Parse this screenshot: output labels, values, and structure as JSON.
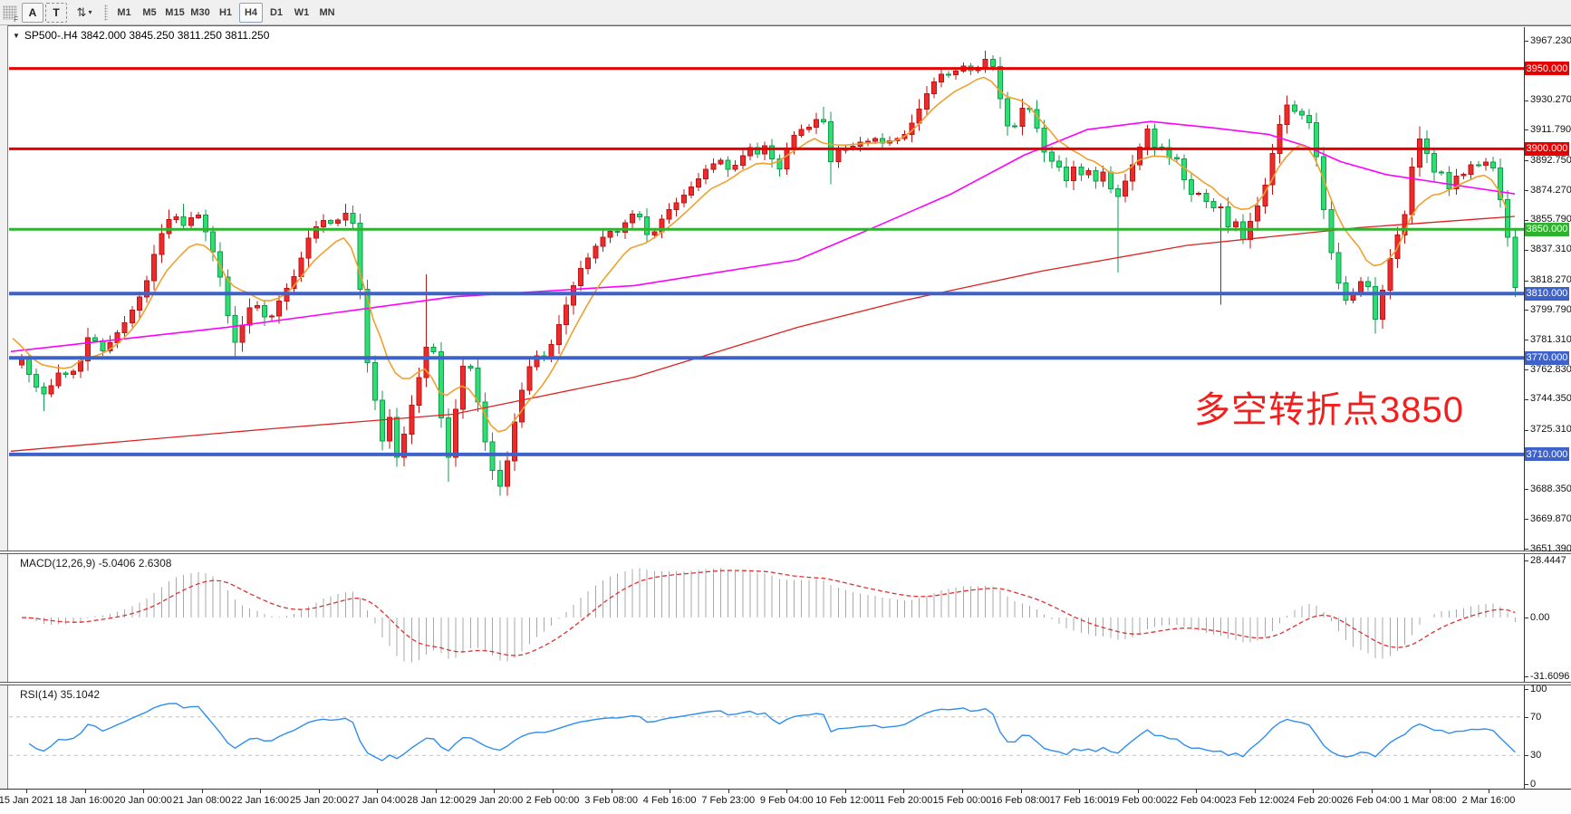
{
  "toolbar": {
    "handle_label": "F",
    "a_button": "A",
    "t_button": "T",
    "arrows_icon": "⇅",
    "caret": "▾",
    "timeframes": [
      "M1",
      "M5",
      "M15",
      "M30",
      "H1",
      "H4",
      "D1",
      "W1",
      "MN"
    ],
    "active_timeframe": "H4"
  },
  "chart": {
    "dropdown_icon": "▼",
    "title_line": "SP500-.H4  3842.000 3845.250 3811.250 3811.250",
    "symbol": "SP500-",
    "timeframe": "H4"
  },
  "annotation": {
    "text": "多空转折点3850",
    "color": "#f21f1f"
  },
  "macd": {
    "label": "MACD(12,26,9) -5.0406 2.6308",
    "scale": [
      "28.4447",
      "0.00",
      "-31.6096"
    ]
  },
  "rsi": {
    "label": "RSI(14) 35.1042",
    "scale": [
      "100",
      "70",
      "30",
      "0"
    ]
  },
  "time_axis": [
    "15 Jan 2021",
    "18 Jan 16:00",
    "20 Jan 00:00",
    "21 Jan 08:00",
    "22 Jan 16:00",
    "25 Jan 20:00",
    "27 Jan 04:00",
    "28 Jan 12:00",
    "29 Jan 20:00",
    "2 Feb 00:00",
    "3 Feb 08:00",
    "4 Feb 16:00",
    "7 Feb 23:00",
    "9 Feb 04:00",
    "10 Feb 12:00",
    "11 Feb 20:00",
    "15 Feb 00:00",
    "16 Feb 08:00",
    "17 Feb 16:00",
    "19 Feb 00:00",
    "22 Feb 04:00",
    "23 Feb 12:00",
    "24 Feb 20:00",
    "26 Feb 04:00",
    "1 Mar 08:00",
    "2 Mar 16:00"
  ],
  "chart_data": {
    "type": "candlestick",
    "symbol": "SP500-",
    "timeframe": "H4",
    "last_bar": {
      "open": 3842.0,
      "high": 3845.25,
      "low": 3811.25,
      "close": 3811.25
    },
    "y_ticks": [
      "3967.230",
      "3930.270",
      "3911.790",
      "3892.750",
      "3874.270",
      "3855.790",
      "3837.310",
      "3818.270",
      "3799.790",
      "3781.310",
      "3762.830",
      "3744.350",
      "3725.310",
      "3688.350",
      "3669.870",
      "3651.390"
    ],
    "y_range": [
      3651.39,
      3967.23
    ],
    "levels": [
      {
        "price": 3950.0,
        "label": "3950.000",
        "color": "#e60000",
        "width": 3
      },
      {
        "price": 3900.0,
        "label": "3900.000",
        "color": "#e60000",
        "width": 3
      },
      {
        "price": 3850.0,
        "label": "3850.000",
        "color": "#2eb32e",
        "width": 3
      },
      {
        "price": 3810.0,
        "label": "3810.000",
        "color": "#3e62c8",
        "width": 4
      },
      {
        "price": 3770.0,
        "label": "3770.000",
        "color": "#3e62c8",
        "width": 4
      },
      {
        "price": 3710.0,
        "label": "3710.000",
        "color": "#3e62c8",
        "width": 4
      }
    ],
    "colors": {
      "bull": "#ea2c2c",
      "bull_edge": "#c01414",
      "bear": "#2ede70",
      "bear_edge": "#0f9e4c",
      "ma_fast": "#f0a030",
      "ma_mid": "#ff00ff",
      "ma_slow": "#dd2222",
      "macd_hist": "#a8a8a8",
      "macd_signal": "#e03030",
      "rsi_line": "#2e8ef0"
    },
    "price_path": [
      [
        12,
        3772
      ],
      [
        22,
        3760
      ],
      [
        32,
        3750
      ],
      [
        40,
        3747
      ],
      [
        50,
        3756
      ],
      [
        58,
        3764
      ],
      [
        66,
        3757
      ],
      [
        74,
        3765
      ],
      [
        82,
        3770
      ],
      [
        88,
        3785
      ],
      [
        96,
        3780
      ],
      [
        104,
        3774
      ],
      [
        112,
        3780
      ],
      [
        120,
        3786
      ],
      [
        128,
        3792
      ],
      [
        136,
        3800
      ],
      [
        144,
        3808
      ],
      [
        152,
        3818
      ],
      [
        160,
        3834
      ],
      [
        168,
        3847
      ],
      [
        176,
        3856
      ],
      [
        184,
        3858
      ],
      [
        192,
        3852
      ],
      [
        200,
        3857
      ],
      [
        208,
        3860
      ],
      [
        216,
        3850
      ],
      [
        224,
        3838
      ],
      [
        232,
        3824
      ],
      [
        240,
        3800
      ],
      [
        248,
        3778
      ],
      [
        254,
        3785
      ],
      [
        262,
        3797
      ],
      [
        270,
        3806
      ],
      [
        278,
        3799
      ],
      [
        286,
        3792
      ],
      [
        294,
        3800
      ],
      [
        302,
        3810
      ],
      [
        310,
        3816
      ],
      [
        318,
        3824
      ],
      [
        326,
        3838
      ],
      [
        334,
        3849
      ],
      [
        342,
        3853
      ],
      [
        350,
        3857
      ],
      [
        358,
        3852
      ],
      [
        366,
        3858
      ],
      [
        374,
        3861
      ],
      [
        380,
        3853
      ],
      [
        388,
        3810
      ],
      [
        396,
        3765
      ],
      [
        404,
        3743
      ],
      [
        412,
        3718
      ],
      [
        420,
        3733
      ],
      [
        428,
        3708
      ],
      [
        436,
        3722
      ],
      [
        444,
        3740
      ],
      [
        452,
        3757
      ],
      [
        458,
        3768
      ],
      [
        464,
        3788
      ],
      [
        470,
        3770
      ],
      [
        476,
        3738
      ],
      [
        482,
        3700
      ],
      [
        488,
        3717
      ],
      [
        494,
        3742
      ],
      [
        500,
        3763
      ],
      [
        506,
        3772
      ],
      [
        512,
        3757
      ],
      [
        518,
        3741
      ],
      [
        524,
        3722
      ],
      [
        530,
        3706
      ],
      [
        537,
        3695
      ],
      [
        543,
        3689
      ],
      [
        549,
        3703
      ],
      [
        555,
        3722
      ],
      [
        561,
        3738
      ],
      [
        567,
        3752
      ],
      [
        573,
        3763
      ],
      [
        581,
        3772
      ],
      [
        589,
        3768
      ],
      [
        597,
        3776
      ],
      [
        605,
        3788
      ],
      [
        613,
        3800
      ],
      [
        621,
        3812
      ],
      [
        629,
        3824
      ],
      [
        637,
        3830
      ],
      [
        645,
        3838
      ],
      [
        653,
        3843
      ],
      [
        661,
        3850
      ],
      [
        669,
        3846
      ],
      [
        677,
        3852
      ],
      [
        685,
        3858
      ],
      [
        693,
        3862
      ],
      [
        700,
        3852
      ],
      [
        707,
        3843
      ],
      [
        714,
        3850
      ],
      [
        722,
        3858
      ],
      [
        730,
        3863
      ],
      [
        738,
        3867
      ],
      [
        746,
        3872
      ],
      [
        754,
        3877
      ],
      [
        762,
        3882
      ],
      [
        770,
        3888
      ],
      [
        778,
        3891
      ],
      [
        786,
        3893
      ],
      [
        794,
        3887
      ],
      [
        802,
        3890
      ],
      [
        810,
        3896
      ],
      [
        818,
        3901
      ],
      [
        826,
        3897
      ],
      [
        834,
        3902
      ],
      [
        842,
        3894
      ],
      [
        850,
        3887
      ],
      [
        858,
        3899
      ],
      [
        866,
        3908
      ],
      [
        874,
        3912
      ],
      [
        882,
        3913
      ],
      [
        890,
        3918
      ],
      [
        898,
        3921
      ],
      [
        906,
        3891
      ],
      [
        912,
        3897
      ],
      [
        920,
        3902
      ],
      [
        928,
        3898
      ],
      [
        936,
        3906
      ],
      [
        944,
        3902
      ],
      [
        952,
        3908
      ],
      [
        960,
        3905
      ],
      [
        968,
        3902
      ],
      [
        976,
        3908
      ],
      [
        984,
        3905
      ],
      [
        992,
        3912
      ],
      [
        1000,
        3919
      ],
      [
        1008,
        3929
      ],
      [
        1016,
        3938
      ],
      [
        1024,
        3944
      ],
      [
        1032,
        3948
      ],
      [
        1040,
        3945
      ],
      [
        1048,
        3950
      ],
      [
        1056,
        3952
      ],
      [
        1064,
        3947
      ],
      [
        1072,
        3952
      ],
      [
        1080,
        3957
      ],
      [
        1088,
        3949
      ],
      [
        1094,
        3931
      ],
      [
        1100,
        3917
      ],
      [
        1106,
        3909
      ],
      [
        1112,
        3916
      ],
      [
        1118,
        3925
      ],
      [
        1124,
        3928
      ],
      [
        1130,
        3919
      ],
      [
        1136,
        3911
      ],
      [
        1142,
        3899
      ],
      [
        1148,
        3889
      ],
      [
        1154,
        3896
      ],
      [
        1160,
        3887
      ],
      [
        1166,
        3879
      ],
      [
        1172,
        3886
      ],
      [
        1178,
        3891
      ],
      [
        1184,
        3883
      ],
      [
        1190,
        3888
      ],
      [
        1196,
        3881
      ],
      [
        1202,
        3879
      ],
      [
        1208,
        3886
      ],
      [
        1214,
        3879
      ],
      [
        1220,
        3866
      ],
      [
        1226,
        3873
      ],
      [
        1232,
        3880
      ],
      [
        1238,
        3887
      ],
      [
        1244,
        3896
      ],
      [
        1250,
        3903
      ],
      [
        1256,
        3913
      ],
      [
        1262,
        3904
      ],
      [
        1268,
        3897
      ],
      [
        1274,
        3902
      ],
      [
        1280,
        3894
      ],
      [
        1286,
        3898
      ],
      [
        1292,
        3889
      ],
      [
        1298,
        3879
      ],
      [
        1304,
        3871
      ],
      [
        1310,
        3876
      ],
      [
        1316,
        3869
      ],
      [
        1322,
        3867
      ],
      [
        1328,
        3861
      ],
      [
        1334,
        3871
      ],
      [
        1340,
        3859
      ],
      [
        1346,
        3851
      ],
      [
        1352,
        3857
      ],
      [
        1358,
        3849
      ],
      [
        1364,
        3841
      ],
      [
        1370,
        3855
      ],
      [
        1376,
        3862
      ],
      [
        1382,
        3869
      ],
      [
        1388,
        3881
      ],
      [
        1394,
        3896
      ],
      [
        1400,
        3911
      ],
      [
        1406,
        3921
      ],
      [
        1412,
        3929
      ],
      [
        1418,
        3924
      ],
      [
        1424,
        3919
      ],
      [
        1430,
        3923
      ],
      [
        1436,
        3915
      ],
      [
        1442,
        3899
      ],
      [
        1448,
        3878
      ],
      [
        1454,
        3849
      ],
      [
        1460,
        3834
      ],
      [
        1466,
        3819
      ],
      [
        1472,
        3809
      ],
      [
        1478,
        3804
      ],
      [
        1484,
        3810
      ],
      [
        1490,
        3816
      ],
      [
        1496,
        3821
      ],
      [
        1502,
        3811
      ],
      [
        1508,
        3794
      ],
      [
        1514,
        3807
      ],
      [
        1520,
        3821
      ],
      [
        1526,
        3836
      ],
      [
        1532,
        3846
      ],
      [
        1539,
        3853
      ],
      [
        1546,
        3881
      ],
      [
        1553,
        3901
      ],
      [
        1559,
        3909
      ],
      [
        1565,
        3897
      ],
      [
        1571,
        3889
      ],
      [
        1577,
        3879
      ],
      [
        1583,
        3888
      ],
      [
        1589,
        3875
      ],
      [
        1595,
        3880
      ],
      [
        1601,
        3888
      ],
      [
        1607,
        3883
      ],
      [
        1613,
        3890
      ],
      [
        1619,
        3892
      ],
      [
        1625,
        3887
      ],
      [
        1631,
        3893
      ],
      [
        1637,
        3889
      ],
      [
        1643,
        3884
      ],
      [
        1649,
        3854
      ],
      [
        1656,
        3842
      ],
      [
        1663,
        3811
      ]
    ],
    "wick_lows": [
      [
        38,
        3737
      ],
      [
        248,
        3770
      ],
      [
        428,
        3703
      ],
      [
        482,
        3693
      ],
      [
        543,
        3687
      ],
      [
        906,
        3878
      ],
      [
        1222,
        3823
      ],
      [
        1340,
        3803
      ],
      [
        1510,
        3785
      ]
    ],
    "wick_highs": [
      [
        190,
        3866
      ],
      [
        374,
        3866
      ],
      [
        464,
        3822
      ],
      [
        898,
        3926
      ],
      [
        1080,
        3961
      ],
      [
        1412,
        3932
      ],
      [
        1559,
        3914
      ]
    ],
    "ma_mid_path": [
      [
        12,
        3774
      ],
      [
        250,
        3789
      ],
      [
        500,
        3808
      ],
      [
        700,
        3815
      ],
      [
        880,
        3831
      ],
      [
        960,
        3850
      ],
      [
        1050,
        3872
      ],
      [
        1130,
        3896
      ],
      [
        1200,
        3912
      ],
      [
        1270,
        3917
      ],
      [
        1340,
        3913
      ],
      [
        1400,
        3909
      ],
      [
        1440,
        3902
      ],
      [
        1480,
        3892
      ],
      [
        1530,
        3884
      ],
      [
        1600,
        3878
      ],
      [
        1672,
        3872
      ]
    ],
    "ma_slow_path": [
      [
        12,
        3712
      ],
      [
        300,
        3726
      ],
      [
        500,
        3735
      ],
      [
        700,
        3758
      ],
      [
        880,
        3789
      ],
      [
        1000,
        3806
      ],
      [
        1150,
        3824
      ],
      [
        1310,
        3840
      ],
      [
        1500,
        3851
      ],
      [
        1672,
        3858
      ]
    ],
    "indicators": {
      "macd": {
        "params": [
          12,
          26,
          9
        ],
        "value": -5.0406,
        "signal_value": 2.6308,
        "axis": [
          28.4447,
          0.0,
          -31.6096
        ]
      },
      "rsi": {
        "period": 14,
        "value": 35.1042,
        "levels": [
          70,
          30
        ],
        "axis": [
          100,
          70,
          30,
          0
        ]
      }
    },
    "x_labels": [
      "15 Jan 2021",
      "18 Jan 16:00",
      "20 Jan 00:00",
      "21 Jan 08:00",
      "22 Jan 16:00",
      "25 Jan 20:00",
      "27 Jan 04:00",
      "28 Jan 12:00",
      "29 Jan 20:00",
      "2 Feb 00:00",
      "3 Feb 08:00",
      "4 Feb 16:00",
      "7 Feb 23:00",
      "9 Feb 04:00",
      "10 Feb 12:00",
      "11 Feb 20:00",
      "15 Feb 00:00",
      "16 Feb 08:00",
      "17 Feb 16:00",
      "19 Feb 00:00",
      "22 Feb 04:00",
      "23 Feb 12:00",
      "24 Feb 20:00",
      "26 Feb 04:00",
      "1 Mar 08:00",
      "2 Mar 16:00"
    ]
  }
}
